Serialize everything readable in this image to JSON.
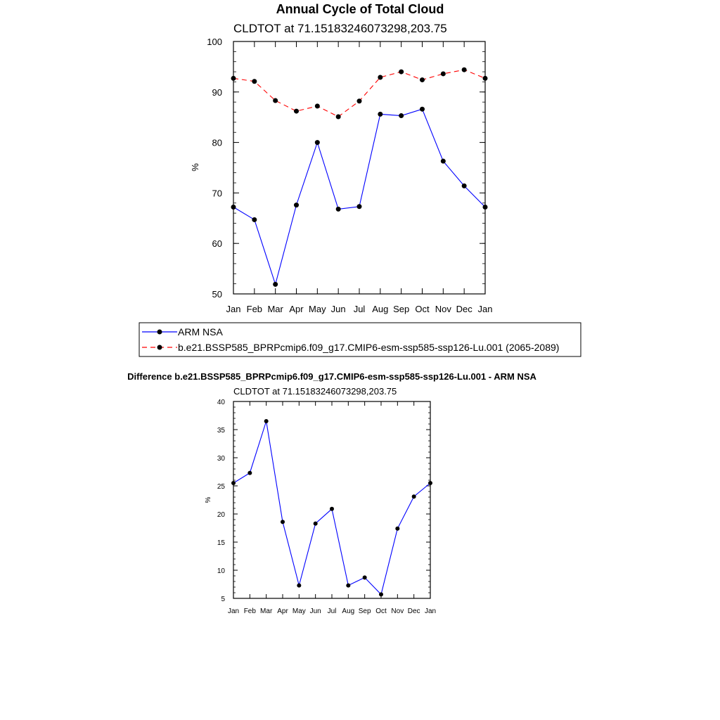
{
  "chart_data": [
    {
      "type": "line",
      "title": "Annual Cycle of Total Cloud",
      "subtitle": "CLDTOT at 71.15183246073298,203.75",
      "xlabel": "",
      "ylabel": "%",
      "categories": [
        "Jan",
        "Feb",
        "Mar",
        "Apr",
        "May",
        "Jun",
        "Jul",
        "Aug",
        "Sep",
        "Oct",
        "Nov",
        "Dec",
        "Jan"
      ],
      "ylim": [
        50,
        100
      ],
      "yticks": [
        50,
        60,
        70,
        80,
        90,
        100
      ],
      "grid": false,
      "legend_position": "bottom",
      "series": [
        {
          "name": "ARM NSA",
          "color": "#0000ff",
          "dash": false,
          "values": [
            67.2,
            64.7,
            51.9,
            67.6,
            80.0,
            66.8,
            67.3,
            85.6,
            85.3,
            86.6,
            76.3,
            71.4,
            67.2
          ]
        },
        {
          "name": "b.e21.BSSP585_BPRPcmip6.f09_g17.CMIP6-esm-ssp585-ssp126-Lu.001 (2065-2089)",
          "color": "#ff0000",
          "dash": true,
          "values": [
            92.7,
            92.1,
            88.3,
            86.2,
            87.2,
            85.1,
            88.2,
            92.9,
            94.0,
            92.4,
            93.6,
            94.4,
            92.7
          ]
        }
      ]
    },
    {
      "type": "line",
      "title": "Difference b.e21.BSSP585_BPRPcmip6.f09_g17.CMIP6-esm-ssp585-ssp126-Lu.001 - ARM NSA",
      "subtitle": "CLDTOT at 71.15183246073298,203.75",
      "xlabel": "",
      "ylabel": "%",
      "categories": [
        "Jan",
        "Feb",
        "Mar",
        "Apr",
        "May",
        "Jun",
        "Jul",
        "Aug",
        "Sep",
        "Oct",
        "Nov",
        "Dec",
        "Jan"
      ],
      "ylim": [
        5,
        40
      ],
      "yticks": [
        5,
        10,
        15,
        20,
        25,
        30,
        35,
        40
      ],
      "grid": false,
      "series": [
        {
          "color": "#0000ff",
          "dash": false,
          "values": [
            25.5,
            27.3,
            36.5,
            18.6,
            7.3,
            18.3,
            20.9,
            7.3,
            8.7,
            5.7,
            17.4,
            23.1,
            25.5
          ]
        }
      ]
    }
  ]
}
